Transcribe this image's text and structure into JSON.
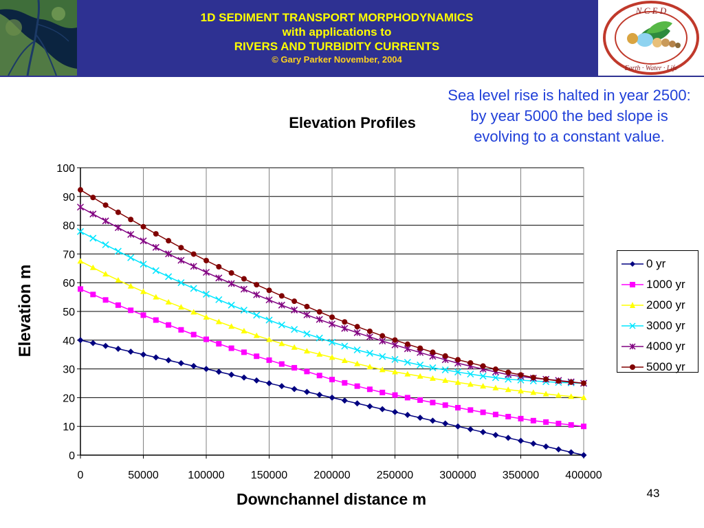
{
  "header": {
    "line1": "1D SEDIMENT TRANSPORT MORPHODYNAMICS",
    "line2": "with applications to",
    "line3": "RIVERS AND TURBIDITY CURRENTS",
    "copyright": "© Gary Parker November, 2004",
    "logo_letters": "N C E D",
    "logo_motto": "Earth · Water · Life",
    "colors": {
      "band": "#2e3192",
      "text": "#ffff00"
    }
  },
  "annotation": "Sea level rise is halted in year 2500: by year 5000 the bed slope is evolving to a constant value.",
  "page_number": "43",
  "chart_data": {
    "type": "line",
    "title": "Elevation Profiles",
    "xlabel": "Downchannel distance m",
    "ylabel": "Elevation m",
    "xlim": [
      0,
      400000
    ],
    "ylim": [
      0,
      100
    ],
    "x_ticks": [
      "0",
      "50000",
      "100000",
      "150000",
      "200000",
      "250000",
      "300000",
      "350000",
      "400000"
    ],
    "y_ticks": [
      "0",
      "10",
      "20",
      "30",
      "40",
      "50",
      "60",
      "70",
      "80",
      "90",
      "100"
    ],
    "grid": true,
    "legend_position": "right",
    "x": [
      0,
      20000,
      40000,
      60000,
      80000,
      100000,
      120000,
      140000,
      160000,
      180000,
      200000,
      220000,
      240000,
      260000,
      280000,
      300000,
      320000,
      340000,
      360000,
      380000,
      400000
    ],
    "series": [
      {
        "name": "0 yr",
        "color": "#000080",
        "marker": "diamond",
        "values": [
          40,
          38,
          36,
          34,
          32,
          30,
          28,
          26,
          24,
          22,
          20,
          18,
          16,
          14,
          12,
          10,
          8,
          6,
          4,
          2,
          0
        ]
      },
      {
        "name": "1000 yr",
        "color": "#ff00ff",
        "marker": "square",
        "values": [
          57.8,
          54.0,
          50.4,
          47.0,
          43.6,
          40.3,
          37.2,
          34.4,
          31.7,
          29.1,
          26.3,
          24.0,
          21.8,
          20.0,
          18.3,
          16.5,
          14.9,
          13.4,
          12.0,
          11.0,
          10.0
        ]
      },
      {
        "name": "2000 yr",
        "color": "#ffff00",
        "marker": "triangle",
        "values": [
          67.5,
          63.0,
          58.8,
          55.0,
          51.5,
          48.0,
          44.8,
          41.6,
          38.8,
          36.2,
          34.0,
          31.8,
          29.7,
          28.2,
          26.7,
          25.3,
          24.0,
          22.8,
          21.8,
          20.8,
          20.0
        ]
      },
      {
        "name": "3000 yr",
        "color": "#00e5ff",
        "marker": "x",
        "values": [
          77.8,
          73.2,
          68.7,
          64.2,
          60.0,
          56.0,
          52.2,
          48.7,
          45.3,
          42.2,
          39.3,
          36.6,
          34.3,
          32.3,
          30.4,
          28.9,
          27.5,
          26.4,
          25.8,
          25.3,
          25.0
        ]
      },
      {
        "name": "4000 yr",
        "color": "#800080",
        "marker": "star",
        "values": [
          86.3,
          81.5,
          76.8,
          72.3,
          67.8,
          63.6,
          59.7,
          55.8,
          52.2,
          48.8,
          45.6,
          42.6,
          39.7,
          37.0,
          34.4,
          32.0,
          29.9,
          28.0,
          26.8,
          26.0,
          25.0
        ]
      },
      {
        "name": "5000 yr",
        "color": "#800000",
        "marker": "circle",
        "values": [
          92.3,
          87.0,
          82.0,
          77.0,
          72.2,
          67.7,
          63.4,
          59.3,
          55.4,
          51.7,
          48.0,
          44.7,
          41.5,
          38.6,
          35.8,
          33.2,
          31.0,
          28.8,
          27.0,
          25.8,
          25.0
        ]
      }
    ]
  }
}
